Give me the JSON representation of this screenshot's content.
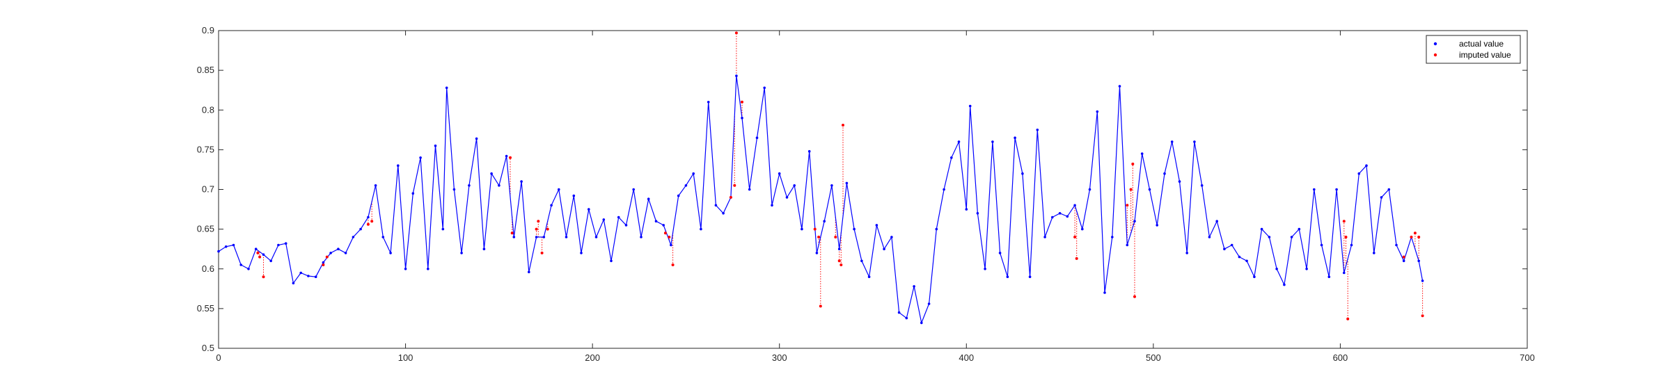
{
  "chart_data": {
    "type": "line",
    "title": "",
    "xlabel": "",
    "ylabel": "",
    "xlim": [
      0,
      700
    ],
    "ylim": [
      0.5,
      0.9
    ],
    "x_ticks": [
      "0",
      "100",
      "200",
      "300",
      "400",
      "500",
      "600",
      "700"
    ],
    "y_ticks": [
      "0.5",
      "0.55",
      "0.6",
      "0.65",
      "0.7",
      "0.75",
      "0.8",
      "0.85",
      "0.9"
    ],
    "grid": false,
    "legend_position": "top-right",
    "colors": {
      "actual": "#0000ff",
      "imputed": "#ff0000",
      "axes": "#262626"
    },
    "series": [
      {
        "name": "actual value",
        "points": [
          [
            0,
            0.622
          ],
          [
            4,
            0.628
          ],
          [
            8,
            0.63
          ],
          [
            12,
            0.605
          ],
          [
            16,
            0.6
          ],
          [
            20,
            0.625
          ],
          [
            24,
            0.618
          ],
          [
            28,
            0.61
          ],
          [
            32,
            0.63
          ],
          [
            36,
            0.632
          ],
          [
            40,
            0.582
          ],
          [
            44,
            0.595
          ],
          [
            48,
            0.591
          ],
          [
            52,
            0.59
          ],
          [
            56,
            0.608
          ],
          [
            60,
            0.62
          ],
          [
            64,
            0.625
          ],
          [
            68,
            0.62
          ],
          [
            72,
            0.64
          ],
          [
            76,
            0.65
          ],
          [
            80,
            0.665
          ],
          [
            84,
            0.705
          ],
          [
            88,
            0.64
          ],
          [
            92,
            0.62
          ],
          [
            96,
            0.73
          ],
          [
            100,
            0.6
          ],
          [
            104,
            0.695
          ],
          [
            108,
            0.74
          ],
          [
            112,
            0.6
          ],
          [
            116,
            0.755
          ],
          [
            120,
            0.65
          ],
          [
            122,
            0.828
          ],
          [
            126,
            0.7
          ],
          [
            130,
            0.62
          ],
          [
            134,
            0.705
          ],
          [
            138,
            0.764
          ],
          [
            142,
            0.625
          ],
          [
            146,
            0.72
          ],
          [
            150,
            0.705
          ],
          [
            154,
            0.742
          ],
          [
            158,
            0.64
          ],
          [
            162,
            0.71
          ],
          [
            166,
            0.596
          ],
          [
            170,
            0.64
          ],
          [
            174,
            0.64
          ],
          [
            178,
            0.68
          ],
          [
            182,
            0.7
          ],
          [
            186,
            0.64
          ],
          [
            190,
            0.692
          ],
          [
            194,
            0.62
          ],
          [
            198,
            0.675
          ],
          [
            202,
            0.64
          ],
          [
            206,
            0.662
          ],
          [
            210,
            0.61
          ],
          [
            214,
            0.665
          ],
          [
            218,
            0.655
          ],
          [
            222,
            0.7
          ],
          [
            226,
            0.64
          ],
          [
            230,
            0.688
          ],
          [
            234,
            0.66
          ],
          [
            238,
            0.655
          ],
          [
            242,
            0.63
          ],
          [
            246,
            0.692
          ],
          [
            250,
            0.705
          ],
          [
            254,
            0.72
          ],
          [
            258,
            0.65
          ],
          [
            262,
            0.81
          ],
          [
            266,
            0.68
          ],
          [
            270,
            0.67
          ],
          [
            274,
            0.69
          ],
          [
            277,
            0.843
          ],
          [
            280,
            0.79
          ],
          [
            284,
            0.7
          ],
          [
            288,
            0.765
          ],
          [
            292,
            0.828
          ],
          [
            296,
            0.68
          ],
          [
            300,
            0.72
          ],
          [
            304,
            0.69
          ],
          [
            308,
            0.705
          ],
          [
            312,
            0.65
          ],
          [
            316,
            0.748
          ],
          [
            320,
            0.62
          ],
          [
            324,
            0.66
          ],
          [
            328,
            0.705
          ],
          [
            332,
            0.625
          ],
          [
            336,
            0.708
          ],
          [
            340,
            0.65
          ],
          [
            344,
            0.61
          ],
          [
            348,
            0.59
          ],
          [
            352,
            0.655
          ],
          [
            356,
            0.625
          ],
          [
            360,
            0.64
          ],
          [
            364,
            0.545
          ],
          [
            368,
            0.538
          ],
          [
            372,
            0.578
          ],
          [
            376,
            0.532
          ],
          [
            380,
            0.556
          ],
          [
            384,
            0.65
          ],
          [
            388,
            0.7
          ],
          [
            392,
            0.74
          ],
          [
            396,
            0.76
          ],
          [
            400,
            0.675
          ],
          [
            402,
            0.805
          ],
          [
            406,
            0.67
          ],
          [
            410,
            0.6
          ],
          [
            414,
            0.76
          ],
          [
            418,
            0.62
          ],
          [
            422,
            0.59
          ],
          [
            426,
            0.765
          ],
          [
            430,
            0.72
          ],
          [
            434,
            0.59
          ],
          [
            438,
            0.775
          ],
          [
            442,
            0.64
          ],
          [
            446,
            0.665
          ],
          [
            450,
            0.67
          ],
          [
            454,
            0.666
          ],
          [
            458,
            0.68
          ],
          [
            462,
            0.65
          ],
          [
            466,
            0.7
          ],
          [
            470,
            0.798
          ],
          [
            474,
            0.57
          ],
          [
            478,
            0.64
          ],
          [
            482,
            0.83
          ],
          [
            486,
            0.63
          ],
          [
            490,
            0.66
          ],
          [
            494,
            0.745
          ],
          [
            498,
            0.7
          ],
          [
            502,
            0.655
          ],
          [
            506,
            0.72
          ],
          [
            510,
            0.76
          ],
          [
            514,
            0.71
          ],
          [
            518,
            0.62
          ],
          [
            522,
            0.76
          ],
          [
            526,
            0.705
          ],
          [
            530,
            0.64
          ],
          [
            534,
            0.66
          ],
          [
            538,
            0.625
          ],
          [
            542,
            0.63
          ],
          [
            546,
            0.615
          ],
          [
            550,
            0.61
          ],
          [
            554,
            0.59
          ],
          [
            558,
            0.65
          ],
          [
            562,
            0.64
          ],
          [
            566,
            0.6
          ],
          [
            570,
            0.58
          ],
          [
            574,
            0.64
          ],
          [
            578,
            0.65
          ],
          [
            582,
            0.6
          ],
          [
            586,
            0.7
          ],
          [
            590,
            0.63
          ],
          [
            594,
            0.59
          ],
          [
            598,
            0.7
          ],
          [
            602,
            0.595
          ],
          [
            606,
            0.63
          ],
          [
            610,
            0.72
          ],
          [
            614,
            0.73
          ],
          [
            618,
            0.62
          ],
          [
            622,
            0.69
          ],
          [
            626,
            0.7
          ],
          [
            630,
            0.63
          ],
          [
            634,
            0.61
          ],
          [
            638,
            0.64
          ],
          [
            642,
            0.61
          ],
          [
            644,
            0.585
          ]
        ]
      },
      {
        "name": "imputed value",
        "points": [
          [
            21,
            0.62
          ],
          [
            22,
            0.615
          ],
          [
            24,
            0.59
          ],
          [
            56,
            0.605
          ],
          [
            58,
            0.615
          ],
          [
            80,
            0.656
          ],
          [
            82,
            0.66
          ],
          [
            156,
            0.74
          ],
          [
            157,
            0.645
          ],
          [
            170,
            0.65
          ],
          [
            171,
            0.66
          ],
          [
            173,
            0.62
          ],
          [
            176,
            0.65
          ],
          [
            239,
            0.645
          ],
          [
            241,
            0.64
          ],
          [
            243,
            0.605
          ],
          [
            274,
            0.69
          ],
          [
            276,
            0.705
          ],
          [
            277,
            0.897
          ],
          [
            280,
            0.81
          ],
          [
            319,
            0.65
          ],
          [
            321,
            0.64
          ],
          [
            322,
            0.553
          ],
          [
            330,
            0.64
          ],
          [
            332,
            0.61
          ],
          [
            333,
            0.605
          ],
          [
            334,
            0.781
          ],
          [
            458,
            0.64
          ],
          [
            459,
            0.613
          ],
          [
            486,
            0.68
          ],
          [
            488,
            0.7
          ],
          [
            489,
            0.732
          ],
          [
            490,
            0.565
          ],
          [
            602,
            0.66
          ],
          [
            603,
            0.64
          ],
          [
            604,
            0.537
          ],
          [
            634,
            0.615
          ],
          [
            638,
            0.64
          ],
          [
            640,
            0.645
          ],
          [
            642,
            0.64
          ],
          [
            644,
            0.541
          ]
        ]
      }
    ]
  }
}
